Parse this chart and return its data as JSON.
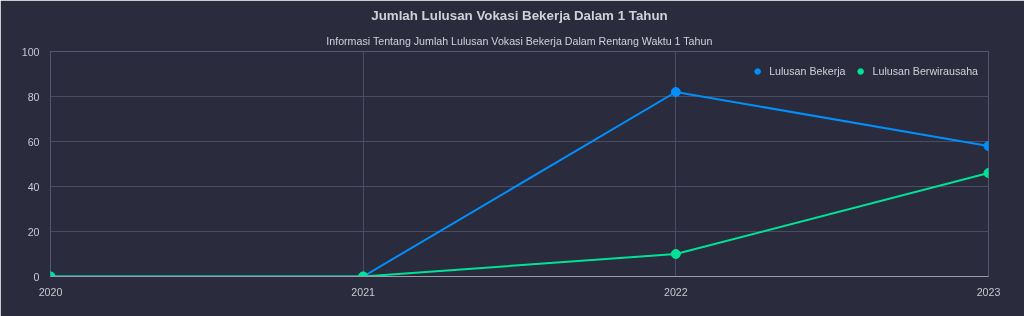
{
  "chart_data": {
    "type": "line",
    "title": "Jumlah Lulusan Vokasi Bekerja Dalam 1 Tahun",
    "subtitle": "Informasi Tentang Jumlah Lulusan Vokasi Bekerja Dalam Rentang Waktu 1 Tahun",
    "x": [
      2020,
      2021,
      2022,
      2023
    ],
    "series": [
      {
        "name": "Lulusan Bekerja",
        "color": "#008ffb",
        "values": [
          0,
          0,
          82,
          58
        ]
      },
      {
        "name": "Lulusan Berwirausaha",
        "color": "#00e396",
        "values": [
          0,
          0,
          10,
          46
        ]
      }
    ],
    "xlim": [
      2020,
      2023
    ],
    "xticks": [
      2020,
      2021,
      2022,
      2023
    ],
    "ylim": [
      0,
      100
    ],
    "yticks": [
      0,
      20,
      40,
      60,
      80,
      100
    ],
    "grid": true,
    "legend": "top right",
    "marker": "circle",
    "line_style": "solid"
  }
}
